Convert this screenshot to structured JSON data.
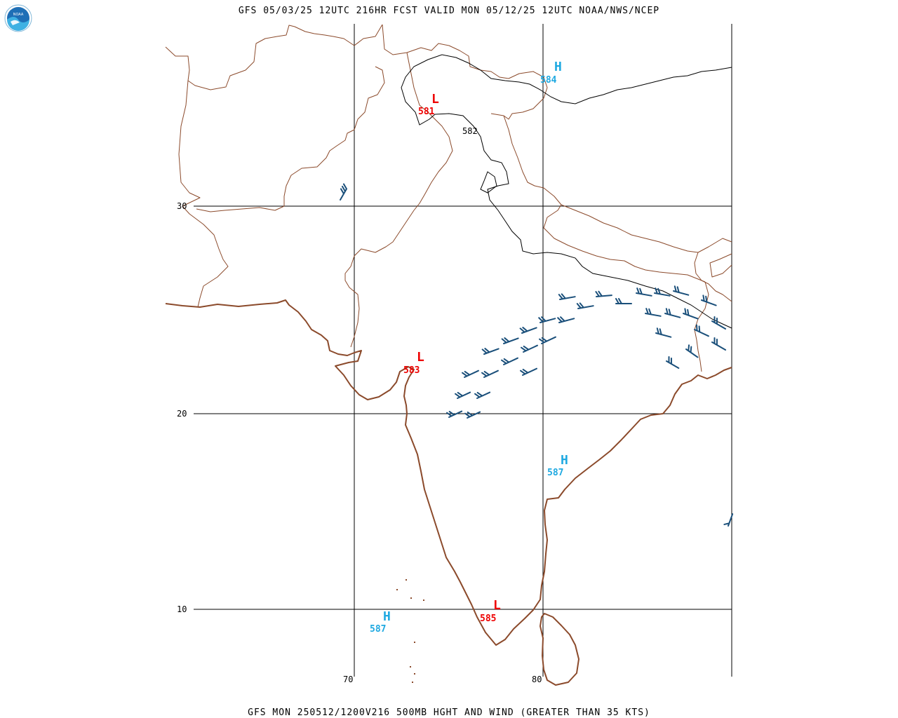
{
  "header": {
    "title": "GFS 05/03/25 12UTC 216HR FCST VALID MON 05/12/25 12UTC NOAA/NWS/NCEP",
    "logo_text": "NOAA"
  },
  "footer": {
    "caption": "GFS MON 250512/1200V216 500MB HGHT AND WIND (GREATER THAN 35 KTS)"
  },
  "axes": {
    "lat_labels": [
      "30",
      "20",
      "10"
    ],
    "lon_labels": [
      "70",
      "80"
    ]
  },
  "contour": {
    "label": "582"
  },
  "pressure_centers": [
    {
      "type": "H",
      "value": "584"
    },
    {
      "type": "L",
      "value": "581"
    },
    {
      "type": "L",
      "value": "583"
    },
    {
      "type": "H",
      "value": "587"
    },
    {
      "type": "H",
      "value": "587"
    },
    {
      "type": "L",
      "value": "585"
    }
  ],
  "colors": {
    "high": "#1fa9e1",
    "low": "#ee0000",
    "coastline": "#8b4a2b",
    "wind_barb": "#1a4f7a",
    "grid": "#000000"
  }
}
